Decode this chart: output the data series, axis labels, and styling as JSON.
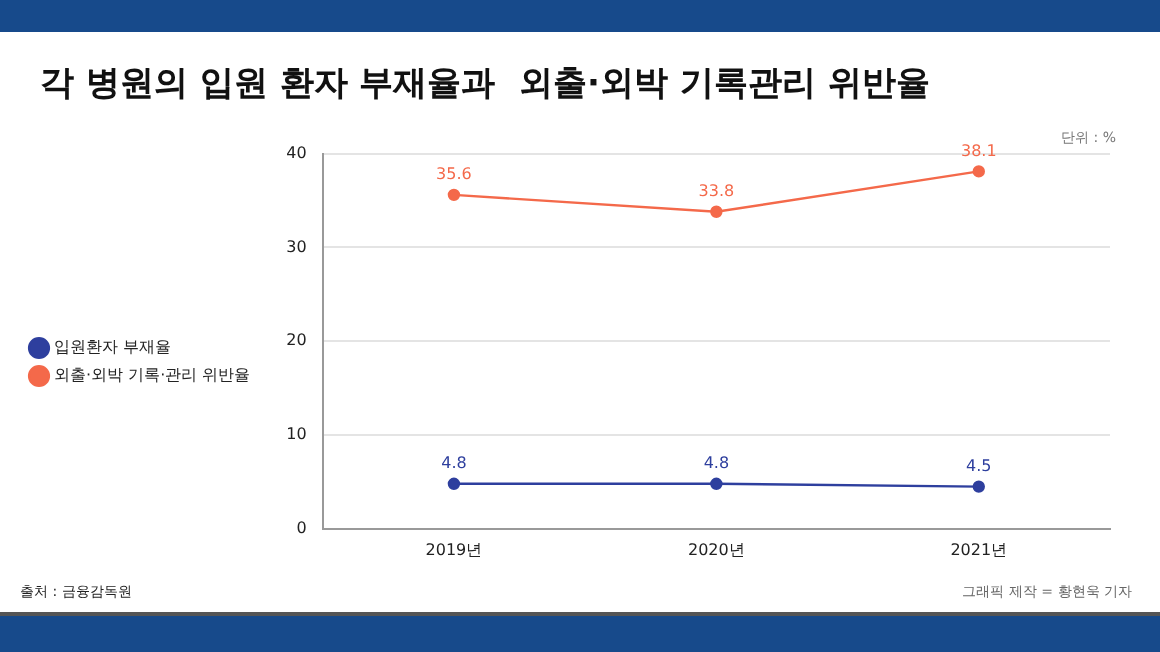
{
  "chart_data": {
    "type": "line",
    "title": "각 병원의 입원 환자 부재율과  외출·외박 기록관리 위반율",
    "categories": [
      "2019년",
      "2020년",
      "2021년"
    ],
    "series": [
      {
        "name": "입원환자 부재율",
        "color": "#2e3f9e",
        "values": [
          4.8,
          4.8,
          4.5
        ]
      },
      {
        "name": "외출·외박 기록·관리 위반율",
        "color": "#f4694a",
        "values": [
          35.6,
          33.8,
          38.1
        ]
      }
    ],
    "ylim": [
      0,
      40
    ],
    "yticks": [
      0,
      10,
      20,
      30,
      40
    ],
    "grid": "y",
    "legend": "left",
    "marker": "circle",
    "data_labels": true,
    "annotations": [
      "단위 : %",
      "출처 : 금융감독원",
      "그래픽 제작 = 황현욱 기자"
    ]
  }
}
